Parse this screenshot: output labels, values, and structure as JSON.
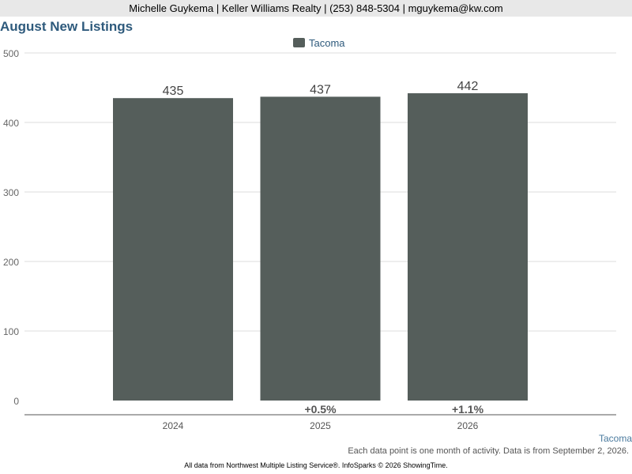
{
  "header": {
    "contact": "Michelle Guykema | Keller Williams Realty | (253) 848-5304 | mguykema@kw.com"
  },
  "chart_data": {
    "type": "bar",
    "title": "August New Listings",
    "categories": [
      "2024",
      "2025",
      "2026"
    ],
    "series": [
      {
        "name": "Tacoma",
        "values": [
          435,
          437,
          442
        ],
        "color": "#555e5b"
      }
    ],
    "changes": [
      "",
      "+0.5%",
      "+1.1%"
    ],
    "ylim": [
      0,
      500
    ],
    "yticks": [
      0,
      100,
      200,
      300,
      400,
      500
    ],
    "grid": true,
    "legend": "top-center"
  },
  "footer": {
    "corner_label": "Tacoma",
    "note": "Each data point is one month of activity. Data is from September 2, 2026.",
    "source": "All data from Northwest Multiple Listing Service®. InfoSparks © 2026 ShowingTime."
  }
}
